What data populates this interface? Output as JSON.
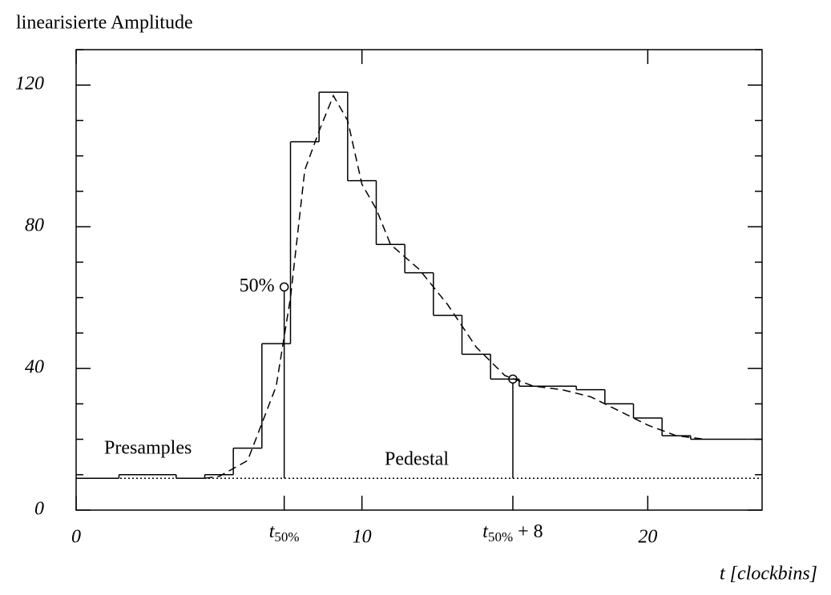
{
  "chart_data": {
    "type": "histogram",
    "title": "linearisierte Amplitude",
    "x_label": "t [clockbins]",
    "bins": [
      0,
      1.5,
      2.5,
      3.5,
      4.5,
      5.5,
      6.5,
      7.5,
      8.5,
      9.5,
      10.5,
      11.5,
      12.5,
      13.5,
      14.5,
      15.5,
      16.5,
      17.5,
      18.5,
      19.5,
      20.5,
      21.5,
      22.5,
      23.5,
      24
    ],
    "counts": [
      9,
      10,
      10,
      9,
      10,
      17.5,
      47,
      104,
      118,
      93,
      75,
      67,
      55,
      44,
      37,
      35,
      35,
      34,
      30,
      26,
      21,
      20,
      20,
      20
    ],
    "color": "#000000",
    "fit": {
      "x": [
        4.5,
        5,
        6,
        7,
        7.5,
        8,
        8.5,
        9,
        9.5,
        10,
        10.5,
        11,
        12,
        13,
        14,
        15,
        16,
        17,
        18,
        19,
        20,
        21,
        22
      ],
      "y": [
        9,
        9.5,
        14,
        35,
        60,
        96,
        107,
        117,
        110,
        92,
        85,
        75,
        68,
        58,
        46,
        38,
        35,
        34,
        32,
        28,
        24,
        21,
        20
      ],
      "dashed": true
    },
    "pedestal": {
      "value": 9,
      "label": "Pedestal",
      "dotted": true
    },
    "presamples_label": "Presamples",
    "markers": [
      {
        "x": 7.28,
        "y": 63,
        "label": "50%"
      },
      {
        "x": 15.28,
        "y": 37
      }
    ],
    "marker_ticks": [
      {
        "value": 7.28,
        "label": "t",
        "sub": "50%"
      },
      {
        "value": 15.28,
        "label": "t",
        "sub": "50%",
        "suffix": "+ 8"
      }
    ],
    "xlim": [
      0,
      24
    ],
    "ylim": [
      0,
      130
    ],
    "xticks": [
      0,
      10,
      20
    ],
    "yticks": [
      0,
      40,
      80,
      120
    ],
    "yminor": [
      10,
      20,
      30,
      50,
      60,
      70,
      90,
      100,
      110,
      130
    ]
  }
}
